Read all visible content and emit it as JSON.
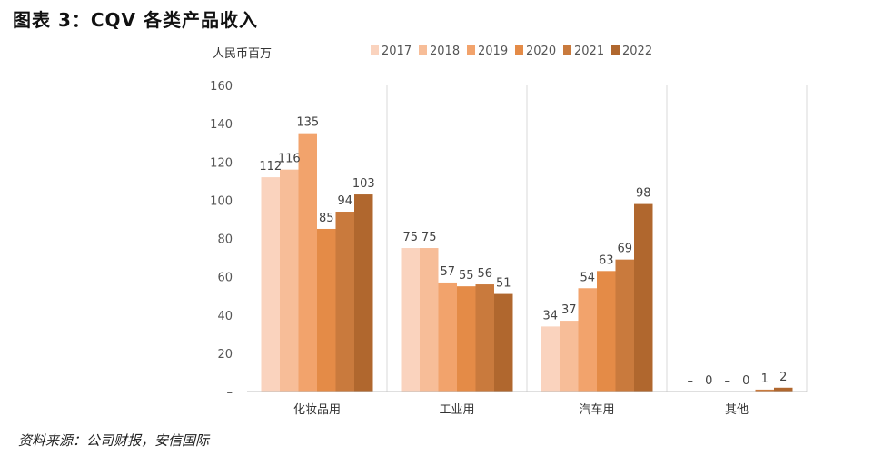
{
  "title": "图表 3：CQV 各类产品收入",
  "source": "资料来源：公司财报，安信国际",
  "chart_data": {
    "type": "bar",
    "title": "",
    "ylabel": "人民币百万",
    "ylim": [
      0,
      160
    ],
    "yticks": [
      0,
      20,
      40,
      60,
      80,
      100,
      120,
      140,
      160
    ],
    "ytick_labels": [
      "–",
      "20",
      "40",
      "60",
      "80",
      "100",
      "120",
      "140",
      "160"
    ],
    "categories": [
      "化妆品用",
      "工业用",
      "汽车用",
      "其他"
    ],
    "legend_position": "top",
    "series": [
      {
        "name": "2017",
        "color": "#FAD3BE",
        "values": [
          112,
          75,
          34,
          0
        ],
        "labels": [
          "112",
          "75",
          "34",
          "–"
        ]
      },
      {
        "name": "2018",
        "color": "#F7BD98",
        "values": [
          116,
          75,
          37,
          0
        ],
        "labels": [
          "116",
          "75",
          "37",
          "0"
        ]
      },
      {
        "name": "2019",
        "color": "#F2A36C",
        "values": [
          135,
          57,
          54,
          0
        ],
        "labels": [
          "135",
          "57",
          "54",
          "–"
        ]
      },
      {
        "name": "2020",
        "color": "#E48B47",
        "values": [
          85,
          55,
          63,
          0
        ],
        "labels": [
          "85",
          "55",
          "63",
          "0"
        ]
      },
      {
        "name": "2021",
        "color": "#C97A3D",
        "values": [
          94,
          56,
          69,
          1
        ],
        "labels": [
          "94",
          "56",
          "69",
          "1"
        ]
      },
      {
        "name": "2022",
        "color": "#B0672E",
        "values": [
          103,
          51,
          98,
          2
        ],
        "labels": [
          "103",
          "51",
          "98",
          "2"
        ]
      }
    ]
  }
}
